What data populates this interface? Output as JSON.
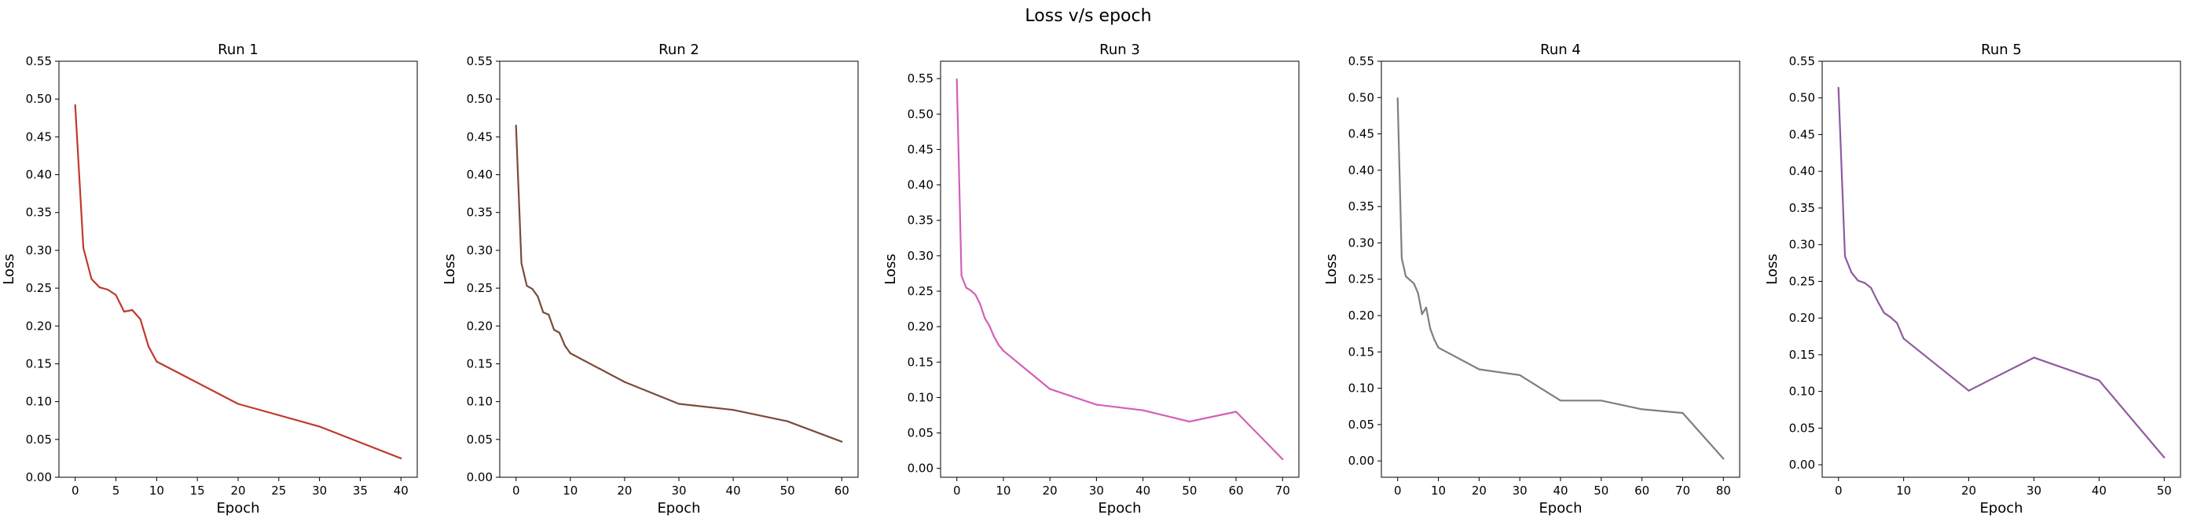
{
  "figure": {
    "title": "Loss v/s epoch"
  },
  "chart_data": [
    {
      "type": "line",
      "title": "Run 1",
      "xlabel": "Epoch",
      "ylabel": "Loss",
      "xlim": [
        -2,
        42
      ],
      "ylim": [
        0,
        0.55
      ],
      "xticks": [
        0,
        5,
        10,
        15,
        20,
        25,
        30,
        35,
        40
      ],
      "yticks": [
        0.0,
        0.05,
        0.1,
        0.15,
        0.2,
        0.25,
        0.3,
        0.35,
        0.4,
        0.45,
        0.5,
        0.55
      ],
      "ytick_decimals": 2,
      "grid": false,
      "series": [
        {
          "color": "#c0392b",
          "x": [
            0,
            1,
            2,
            3,
            4,
            5,
            6,
            7,
            8,
            9,
            10,
            20,
            30,
            40
          ],
          "y": [
            0.492,
            0.303,
            0.262,
            0.251,
            0.248,
            0.241,
            0.219,
            0.221,
            0.209,
            0.173,
            0.153,
            0.097,
            0.067,
            0.025
          ]
        }
      ]
    },
    {
      "type": "line",
      "title": "Run 2",
      "xlabel": "Epoch",
      "ylabel": "Loss",
      "xlim": [
        -3,
        63
      ],
      "ylim": [
        0,
        0.55
      ],
      "xticks": [
        0,
        10,
        20,
        30,
        40,
        50,
        60
      ],
      "yticks": [
        0.0,
        0.05,
        0.1,
        0.15,
        0.2,
        0.25,
        0.3,
        0.35,
        0.4,
        0.45,
        0.5,
        0.55
      ],
      "ytick_decimals": 2,
      "grid": false,
      "series": [
        {
          "color": "#7b4b3a",
          "x": [
            0,
            1,
            2,
            3,
            4,
            5,
            6,
            7,
            8,
            9,
            10,
            20,
            30,
            40,
            50,
            60
          ],
          "y": [
            0.465,
            0.283,
            0.253,
            0.249,
            0.239,
            0.218,
            0.215,
            0.195,
            0.191,
            0.174,
            0.164,
            0.126,
            0.097,
            0.089,
            0.074,
            0.047
          ]
        }
      ]
    },
    {
      "type": "line",
      "title": "Run 3",
      "xlabel": "Epoch",
      "ylabel": "Loss",
      "xlim": [
        -3.5,
        73.5
      ],
      "ylim": [
        -0.0125,
        0.5745
      ],
      "xticks": [
        0,
        10,
        20,
        30,
        40,
        50,
        60,
        70
      ],
      "yticks": [
        0.0,
        0.05,
        0.1,
        0.15,
        0.2,
        0.25,
        0.3,
        0.35,
        0.4,
        0.45,
        0.5,
        0.55
      ],
      "ytick_decimals": 2,
      "grid": false,
      "series": [
        {
          "color": "#d35fb7",
          "x": [
            0,
            1,
            2,
            3,
            4,
            5,
            6,
            7,
            8,
            9,
            10,
            20,
            30,
            40,
            50,
            60,
            70
          ],
          "y": [
            0.549,
            0.272,
            0.255,
            0.251,
            0.245,
            0.232,
            0.212,
            0.201,
            0.186,
            0.174,
            0.166,
            0.112,
            0.09,
            0.082,
            0.066,
            0.08,
            0.013
          ]
        }
      ]
    },
    {
      "type": "line",
      "title": "Run 4",
      "xlabel": "Epoch",
      "ylabel": "Loss",
      "xlim": [
        -4,
        84
      ],
      "ylim": [
        -0.0225,
        0.55
      ],
      "xticks": [
        0,
        10,
        20,
        30,
        40,
        50,
        60,
        70,
        80
      ],
      "yticks": [
        0.0,
        0.05,
        0.1,
        0.15,
        0.2,
        0.25,
        0.3,
        0.35,
        0.4,
        0.45,
        0.5,
        0.55
      ],
      "ytick_decimals": 2,
      "grid": false,
      "series": [
        {
          "color": "#7f7f7f",
          "x": [
            0,
            1,
            2,
            3,
            4,
            5,
            6,
            7,
            8,
            9,
            10,
            20,
            30,
            40,
            50,
            60,
            70,
            80
          ],
          "y": [
            0.499,
            0.279,
            0.254,
            0.249,
            0.244,
            0.231,
            0.202,
            0.211,
            0.182,
            0.167,
            0.156,
            0.126,
            0.118,
            0.083,
            0.083,
            0.071,
            0.066,
            0.003
          ]
        }
      ]
    },
    {
      "type": "line",
      "title": "Run 5",
      "xlabel": "Epoch",
      "ylabel": "Loss",
      "xlim": [
        -2.5,
        52.5
      ],
      "ylim": [
        -0.017,
        0.55
      ],
      "xticks": [
        0,
        10,
        20,
        30,
        40,
        50
      ],
      "yticks": [
        0.0,
        0.05,
        0.1,
        0.15,
        0.2,
        0.25,
        0.3,
        0.35,
        0.4,
        0.45,
        0.5,
        0.55
      ],
      "ytick_decimals": 2,
      "grid": false,
      "series": [
        {
          "color": "#8e5a9f",
          "x": [
            0,
            1,
            2,
            3,
            4,
            5,
            6,
            7,
            8,
            9,
            10,
            20,
            30,
            40,
            50
          ],
          "y": [
            0.514,
            0.284,
            0.262,
            0.251,
            0.248,
            0.241,
            0.223,
            0.207,
            0.201,
            0.193,
            0.172,
            0.101,
            0.146,
            0.115,
            0.01
          ]
        }
      ]
    }
  ]
}
